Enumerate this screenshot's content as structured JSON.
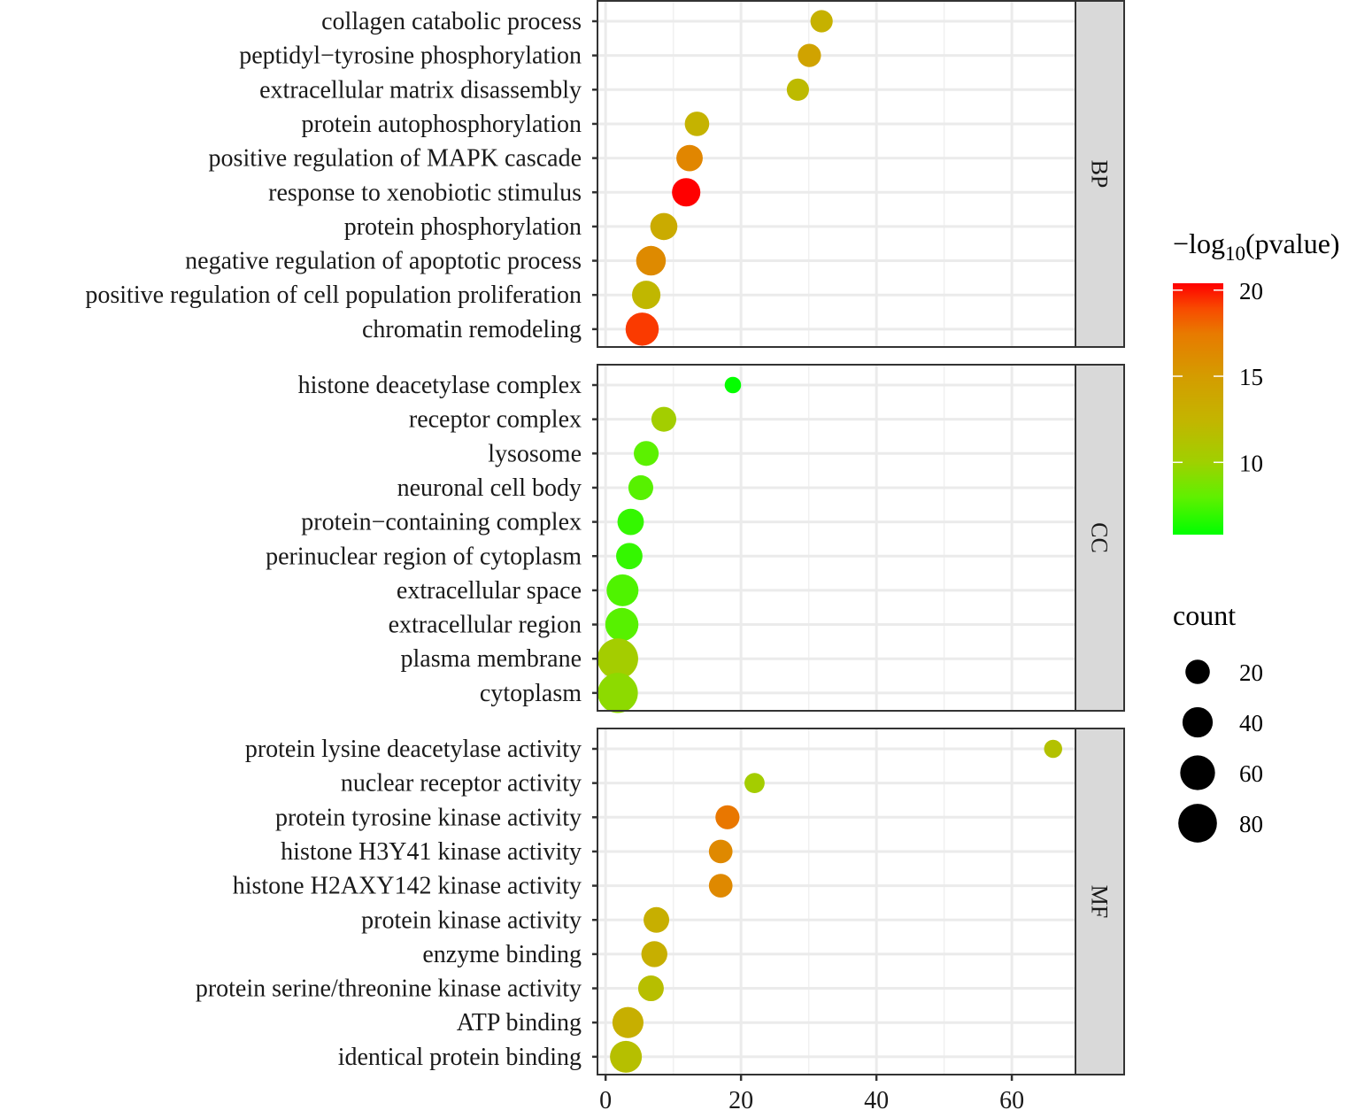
{
  "chart_data": {
    "type": "scatter",
    "title": "",
    "xlabel": "",
    "ylabel": "",
    "xlim": [
      -1.2,
      69.4
    ],
    "x_ticks": [
      0,
      20,
      40,
      60
    ],
    "grid": true,
    "color_legend": {
      "title_main": "−log",
      "title_sub": "10",
      "title_end": "(pvalue)",
      "range": [
        5.8,
        20.4
      ],
      "ticks": [
        10,
        15,
        20
      ],
      "low_color": "#00ff00",
      "high_color": "#ff0000",
      "placement": "right"
    },
    "size_legend": {
      "title": "count",
      "values": [
        20,
        40,
        60,
        80
      ],
      "placement": "right"
    },
    "facets": [
      {
        "name": "BP",
        "terms": [
          {
            "label": "collagen catabolic process",
            "x": 31.9,
            "count": 12,
            "logp": 12.8
          },
          {
            "label": "peptidyl−tyrosine phosphorylation",
            "x": 30.1,
            "count": 14,
            "logp": 14.3
          },
          {
            "label": "extracellular matrix disassembly",
            "x": 28.4,
            "count": 12,
            "logp": 12.0
          },
          {
            "label": "protein autophosphorylation",
            "x": 13.5,
            "count": 17,
            "logp": 12.6
          },
          {
            "label": "positive regulation of MAPK cascade",
            "x": 12.4,
            "count": 22,
            "logp": 16.6
          },
          {
            "label": "response to xenobiotic stimulus",
            "x": 11.9,
            "count": 28,
            "logp": 20.4
          },
          {
            "label": "protein phosphorylation",
            "x": 8.6,
            "count": 24,
            "logp": 13.4
          },
          {
            "label": "negative regulation of apoptotic process",
            "x": 6.7,
            "count": 32,
            "logp": 16.3
          },
          {
            "label": "positive regulation of cell population proliferation",
            "x": 6.0,
            "count": 28,
            "logp": 12.2
          },
          {
            "label": "chromatin remodeling",
            "x": 5.4,
            "count": 45,
            "logp": 19.3
          }
        ]
      },
      {
        "name": "CC",
        "terms": [
          {
            "label": "histone deacetylase complex",
            "x": 18.8,
            "count": 3,
            "logp": 5.9
          },
          {
            "label": "receptor complex",
            "x": 8.6,
            "count": 18,
            "logp": 10.2
          },
          {
            "label": "lysosome",
            "x": 6.0,
            "count": 18,
            "logp": 7.9
          },
          {
            "label": "neuronal cell body",
            "x": 5.2,
            "count": 18,
            "logp": 7.8
          },
          {
            "label": "protein−containing complex",
            "x": 3.7,
            "count": 22,
            "logp": 7.0
          },
          {
            "label": "perinuclear region of cytoplasm",
            "x": 3.5,
            "count": 22,
            "logp": 7.0
          },
          {
            "label": "extracellular space",
            "x": 2.5,
            "count": 40,
            "logp": 7.6
          },
          {
            "label": "extracellular region",
            "x": 2.4,
            "count": 45,
            "logp": 7.8
          },
          {
            "label": "plasma membrane",
            "x": 1.8,
            "count": 80,
            "logp": 10.3
          },
          {
            "label": "cytoplasm",
            "x": 1.8,
            "count": 77,
            "logp": 9.4
          }
        ]
      },
      {
        "name": "MF",
        "terms": [
          {
            "label": "protein lysine deacetylase activity",
            "x": 66.1,
            "count": 5,
            "logp": 11.3
          },
          {
            "label": "nuclear receptor activity",
            "x": 22.0,
            "count": 8,
            "logp": 10.3
          },
          {
            "label": "protein tyrosine kinase activity",
            "x": 18.0,
            "count": 16,
            "logp": 17.6
          },
          {
            "label": "histone H3Y41 kinase activity",
            "x": 17.0,
            "count": 15,
            "logp": 16.4
          },
          {
            "label": "histone H2AXY142 kinase activity",
            "x": 17.0,
            "count": 15,
            "logp": 16.4
          },
          {
            "label": "protein kinase activity",
            "x": 7.5,
            "count": 20,
            "logp": 13.0
          },
          {
            "label": "enzyme binding",
            "x": 7.2,
            "count": 21,
            "logp": 13.0
          },
          {
            "label": "protein serine/threonine kinase activity",
            "x": 6.7,
            "count": 20,
            "logp": 11.6
          },
          {
            "label": "ATP binding",
            "x": 3.3,
            "count": 37,
            "logp": 13.0
          },
          {
            "label": "identical protein binding",
            "x": 3.0,
            "count": 40,
            "logp": 11.5
          }
        ]
      }
    ]
  }
}
